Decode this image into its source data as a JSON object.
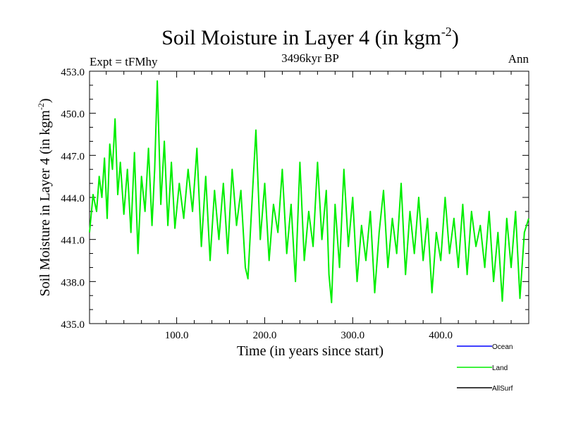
{
  "chart_data": {
    "type": "line",
    "title": "Soil Moisture in Layer 4 (in kgm",
    "title_sup": "-2",
    "title_close": ")",
    "subtitle": "3496kyr BP",
    "left_label": "Expt = tFMhy",
    "right_label": "Ann",
    "xlabel": "Time (in years since start)",
    "ylabel": "Soil Moisture in Layer 4 (in kgm",
    "ylabel_sup": "-2",
    "ylabel_close": ")",
    "xlim": [
      1,
      500
    ],
    "ylim": [
      435.0,
      453.0
    ],
    "xticks": [
      100,
      200,
      300,
      400
    ],
    "xtick_labels": [
      "100.0",
      "200.0",
      "300.0",
      "400.0"
    ],
    "yticks": [
      435,
      438,
      441,
      444,
      447,
      450,
      453
    ],
    "ytick_labels": [
      "435.0",
      "438.0",
      "441.0",
      "444.0",
      "447.0",
      "450.0",
      "453.0"
    ],
    "legend": [
      {
        "name": "Ocean",
        "color": "#0000ff"
      },
      {
        "name": "Land",
        "color": "#00ee00"
      },
      {
        "name": "AllSurf",
        "color": "#000000"
      }
    ],
    "series": [
      {
        "name": "Land",
        "color": "#00ee00",
        "x": [
          1,
          5,
          9,
          12,
          15,
          18,
          21,
          24,
          27,
          30,
          33,
          36,
          40,
          44,
          48,
          52,
          56,
          60,
          64,
          68,
          72,
          75,
          78,
          82,
          86,
          90,
          94,
          98,
          103,
          108,
          113,
          118,
          123,
          128,
          133,
          138,
          143,
          148,
          153,
          158,
          163,
          168,
          173,
          178,
          181,
          185,
          190,
          195,
          200,
          205,
          210,
          215,
          220,
          225,
          230,
          235,
          240,
          245,
          250,
          255,
          260,
          265,
          270,
          273,
          276,
          280,
          285,
          290,
          295,
          300,
          305,
          310,
          315,
          320,
          325,
          330,
          335,
          340,
          345,
          350,
          355,
          360,
          365,
          370,
          375,
          380,
          385,
          390,
          395,
          400,
          405,
          410,
          415,
          420,
          425,
          430,
          435,
          440,
          445,
          450,
          455,
          460,
          465,
          470,
          475,
          480,
          485,
          490,
          495,
          500
        ],
        "values": [
          441.5,
          444.2,
          443.0,
          445.5,
          444.0,
          446.8,
          442.5,
          447.8,
          446.0,
          449.6,
          444.2,
          446.5,
          442.8,
          446.0,
          441.5,
          447.2,
          440.0,
          445.5,
          443.0,
          447.5,
          442.0,
          446.0,
          452.3,
          443.5,
          448.0,
          442.0,
          446.5,
          441.8,
          445.0,
          442.5,
          446.0,
          443.0,
          447.5,
          440.5,
          445.5,
          439.5,
          444.5,
          441.0,
          445.0,
          440.0,
          446.0,
          442.0,
          444.5,
          439.0,
          438.2,
          443.0,
          448.8,
          441.0,
          445.0,
          439.5,
          443.5,
          441.5,
          446.0,
          440.0,
          443.5,
          438.0,
          446.5,
          439.5,
          443.0,
          440.5,
          446.5,
          441.0,
          444.5,
          438.5,
          436.5,
          443.5,
          439.0,
          446.0,
          440.5,
          444.0,
          438.0,
          442.0,
          439.5,
          443.0,
          437.2,
          441.5,
          444.5,
          439.0,
          442.5,
          440.0,
          445.0,
          438.5,
          443.0,
          440.0,
          444.0,
          439.5,
          442.5,
          437.2,
          441.5,
          439.5,
          444.0,
          440.0,
          442.5,
          439.0,
          443.5,
          438.5,
          443.0,
          440.5,
          442.0,
          439.0,
          443.0,
          438.0,
          441.5,
          436.6,
          442.5,
          439.0,
          443.0,
          436.8,
          441.5,
          442.5
        ]
      }
    ]
  }
}
